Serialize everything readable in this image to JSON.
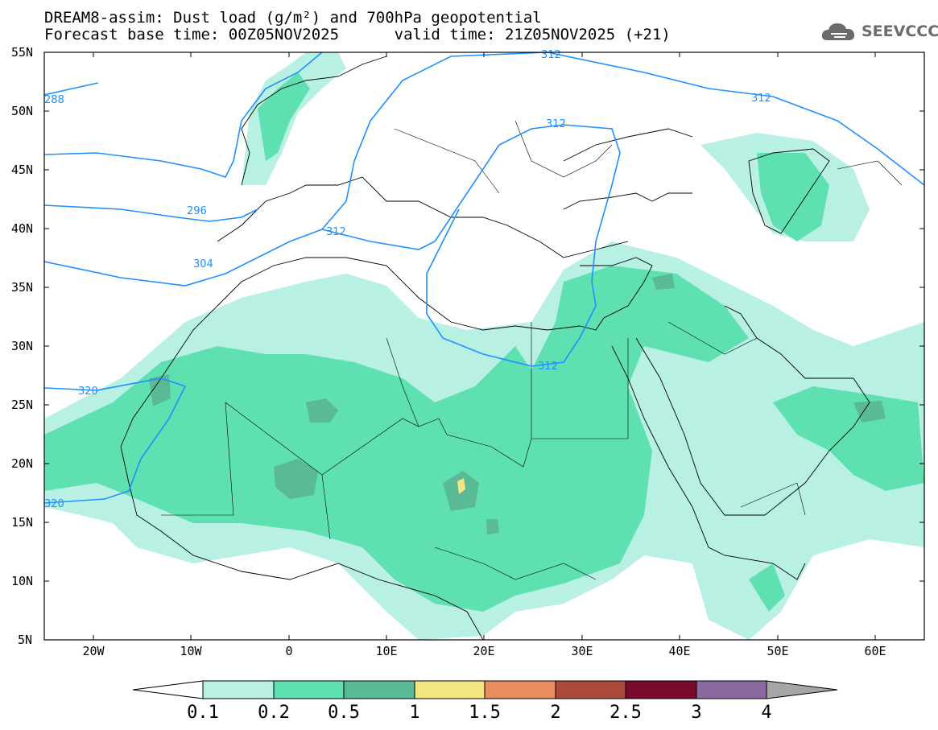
{
  "title": {
    "line1": "DREAM8-assim: Dust load (g/m²) and 700hPa geopotential",
    "line2": "Forecast base time: 00Z05NOV2025      valid time: 21Z05NOV2025 (+21)"
  },
  "logo": {
    "text": "SEEVCCC",
    "icon": "cloud-icon"
  },
  "map": {
    "lon_range": [
      -25,
      65
    ],
    "lat_range": [
      5,
      55
    ],
    "lat_ticks": [
      "55N",
      "50N",
      "45N",
      "40N",
      "35N",
      "30N",
      "25N",
      "20N",
      "15N",
      "10N",
      "5N"
    ],
    "lon_ticks": [
      "20W",
      "10W",
      "0",
      "10E",
      "20E",
      "30E",
      "40E",
      "50E",
      "60E"
    ],
    "contour_labels": [
      {
        "text": "288"
      },
      {
        "text": "296"
      },
      {
        "text": "304"
      },
      {
        "text": "312"
      },
      {
        "text": "312"
      },
      {
        "text": "312"
      },
      {
        "text": "312"
      },
      {
        "text": "312"
      },
      {
        "text": "320"
      },
      {
        "text": "320"
      }
    ],
    "colors": {
      "contour": "#1e90ff",
      "level_0_1": "#b8f0e3",
      "level_0_2": "#5ee0b0",
      "level_0_5": "#5aba96",
      "level_1": "#f3e681",
      "coast": "#000000"
    }
  },
  "colorbar": {
    "labels": [
      "0.1",
      "0.2",
      "0.5",
      "1",
      "1.5",
      "2",
      "2.5",
      "3",
      "4"
    ],
    "colors": [
      "#ffffff",
      "#b8f0e3",
      "#5ee0b0",
      "#5aba96",
      "#f3e681",
      "#ea8c62",
      "#ab4a3c",
      "#7a0a2a",
      "#8a6aa0",
      "#a6a6a6"
    ]
  }
}
